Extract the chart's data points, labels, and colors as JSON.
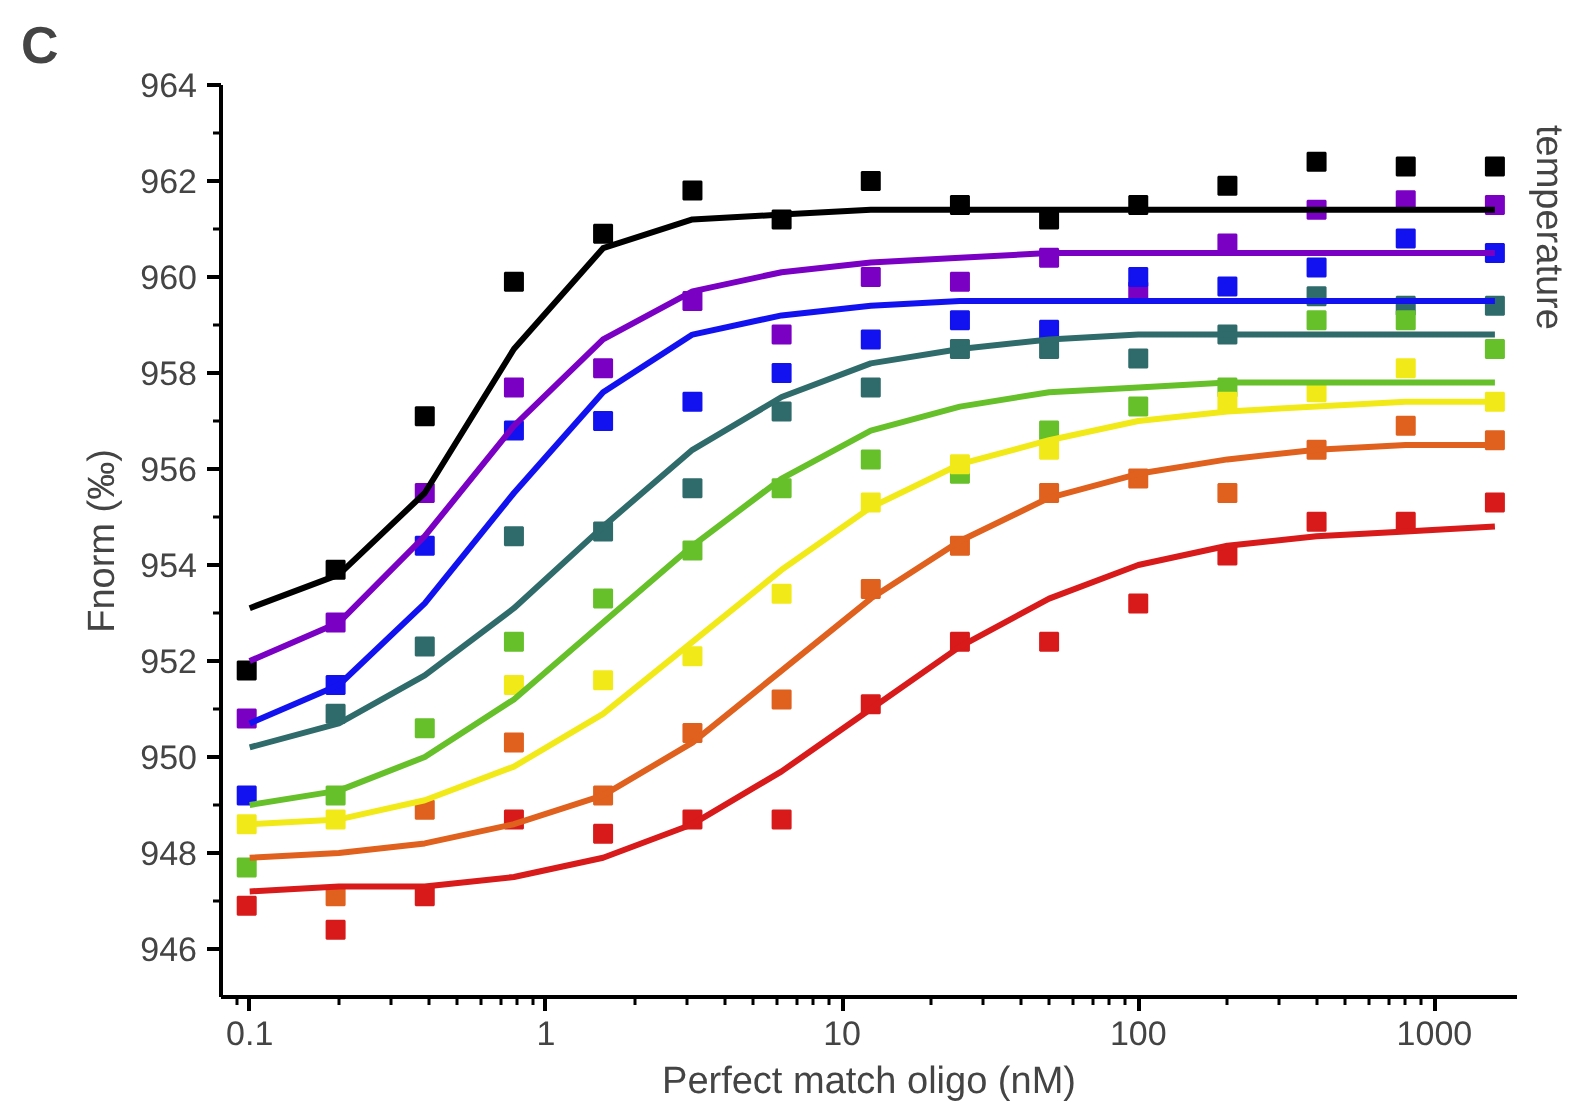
{
  "chart_data": {
    "type": "scatter",
    "title": "C",
    "xlabel": "Perfect match oligo (nM)",
    "ylabel": "Fnorm (‰)",
    "annotations": [
      "temperature"
    ],
    "log": "x",
    "grid": false,
    "marker": "square",
    "xlim": [
      0.08,
      1900
    ],
    "ylim": [
      945,
      964
    ],
    "xticks": [
      {
        "value": 0.09,
        "label": null
      },
      0.1,
      {
        "value": 0.2,
        "label": null
      },
      {
        "value": 0.3,
        "label": null
      },
      {
        "value": 0.4,
        "label": null
      },
      {
        "value": 0.5,
        "label": null
      },
      {
        "value": 0.6,
        "label": null
      },
      {
        "value": 0.7,
        "label": null
      },
      {
        "value": 0.8,
        "label": null
      },
      {
        "value": 0.9,
        "label": null
      },
      1,
      {
        "value": 2,
        "label": null
      },
      {
        "value": 3,
        "label": null
      },
      {
        "value": 4,
        "label": null
      },
      {
        "value": 5,
        "label": null
      },
      {
        "value": 6,
        "label": null
      },
      {
        "value": 7,
        "label": null
      },
      {
        "value": 8,
        "label": null
      },
      {
        "value": 9,
        "label": null
      },
      10,
      {
        "value": 20,
        "label": null
      },
      {
        "value": 30,
        "label": null
      },
      {
        "value": 40,
        "label": null
      },
      {
        "value": 50,
        "label": null
      },
      {
        "value": 60,
        "label": null
      },
      {
        "value": 70,
        "label": null
      },
      {
        "value": 80,
        "label": null
      },
      {
        "value": 90,
        "label": null
      },
      100,
      {
        "value": 200,
        "label": null
      },
      {
        "value": 300,
        "label": null
      },
      {
        "value": 400,
        "label": null
      },
      {
        "value": 500,
        "label": null
      },
      {
        "value": 600,
        "label": null
      },
      {
        "value": 700,
        "label": null
      },
      {
        "value": 800,
        "label": null
      },
      {
        "value": 900,
        "label": null
      },
      1000
    ],
    "yticks": [
      946,
      {
        "value": 947,
        "label": null
      },
      948,
      {
        "value": 949,
        "label": null
      },
      950,
      {
        "value": 951,
        "label": null
      },
      952,
      {
        "value": 953,
        "label": null
      },
      954,
      {
        "value": 955,
        "label": null
      },
      956,
      {
        "value": 957,
        "label": null
      },
      958,
      {
        "value": 959,
        "label": null
      },
      960,
      {
        "value": 961,
        "label": null
      },
      962,
      {
        "value": 963,
        "label": null
      },
      964
    ],
    "x": [
      0.0977,
      0.195,
      0.39,
      0.78,
      1.56,
      3.125,
      6.25,
      12.5,
      25,
      50,
      100,
      200,
      400,
      800,
      1600
    ],
    "series": [
      {
        "color": "#000000",
        "values": [
          951.8,
          953.9,
          957.1,
          959.9,
          960.9,
          961.8,
          961.2,
          962.0,
          961.5,
          961.2,
          961.5,
          961.9,
          962.4,
          962.3,
          962.3
        ]
      },
      {
        "color": "#7a00c4",
        "values": [
          950.8,
          952.8,
          955.5,
          957.7,
          958.1,
          959.5,
          958.8,
          960.0,
          959.9,
          960.4,
          959.7,
          960.7,
          961.4,
          961.6,
          961.5
        ]
      },
      {
        "color": "#1212f0",
        "values": [
          949.2,
          951.5,
          954.4,
          956.8,
          957.0,
          957.4,
          958.0,
          958.7,
          959.1,
          958.9,
          960.0,
          959.8,
          960.2,
          960.8,
          960.5
        ]
      },
      {
        "color": "#2f6b6b",
        "values": [
          null,
          950.9,
          952.3,
          954.6,
          954.7,
          955.6,
          957.2,
          957.7,
          958.5,
          958.5,
          958.3,
          958.8,
          959.6,
          959.4,
          959.4
        ]
      },
      {
        "color": "#66c02a",
        "values": [
          947.7,
          949.2,
          950.6,
          952.4,
          953.3,
          954.3,
          955.6,
          956.2,
          955.9,
          956.8,
          957.3,
          957.7,
          959.1,
          959.1,
          958.5
        ]
      },
      {
        "color": "#f2ea18",
        "values": [
          948.6,
          948.7,
          null,
          951.5,
          951.6,
          952.1,
          953.4,
          955.3,
          956.1,
          956.4,
          null,
          957.4,
          957.6,
          958.1,
          957.4
        ]
      },
      {
        "color": "#e0601e",
        "values": [
          null,
          947.1,
          948.9,
          950.3,
          949.2,
          950.5,
          951.2,
          953.5,
          954.4,
          955.5,
          955.8,
          955.5,
          956.4,
          956.9,
          956.6
        ]
      },
      {
        "color": "#d81a1a",
        "values": [
          946.9,
          946.4,
          947.1,
          948.7,
          948.4,
          948.7,
          948.7,
          951.1,
          952.4,
          952.4,
          953.2,
          954.2,
          954.9,
          954.9,
          955.3
        ]
      },
      {
        "type": "line",
        "marker": "none",
        "color": "#000000",
        "x": [
          0.1,
          0.2,
          0.39,
          0.78,
          1.56,
          3.125,
          6.25,
          12.5,
          25,
          50,
          100,
          200,
          400,
          800,
          1600
        ],
        "values": [
          953.1,
          953.8,
          955.5,
          958.5,
          960.6,
          961.2,
          961.3,
          961.4,
          961.4,
          961.4,
          961.4,
          961.4,
          961.4,
          961.4,
          961.4
        ]
      },
      {
        "type": "line",
        "marker": "none",
        "color": "#7a00c4",
        "x": [
          0.1,
          0.2,
          0.39,
          0.78,
          1.56,
          3.125,
          6.25,
          12.5,
          25,
          50,
          100,
          200,
          400,
          800,
          1600
        ],
        "values": [
          952.0,
          952.8,
          954.6,
          956.9,
          958.7,
          959.7,
          960.1,
          960.3,
          960.4,
          960.5,
          960.5,
          960.5,
          960.5,
          960.5,
          960.5
        ]
      },
      {
        "type": "line",
        "marker": "none",
        "color": "#1212f0",
        "x": [
          0.1,
          0.2,
          0.39,
          0.78,
          1.56,
          3.125,
          6.25,
          12.5,
          25,
          50,
          100,
          200,
          400,
          800,
          1600
        ],
        "values": [
          950.7,
          951.5,
          953.2,
          955.5,
          957.6,
          958.8,
          959.2,
          959.4,
          959.5,
          959.5,
          959.5,
          959.5,
          959.5,
          959.5,
          959.5
        ]
      },
      {
        "type": "line",
        "marker": "none",
        "color": "#2f6b6b",
        "x": [
          0.1,
          0.2,
          0.39,
          0.78,
          1.56,
          3.125,
          6.25,
          12.5,
          25,
          50,
          100,
          200,
          400,
          800,
          1600
        ],
        "values": [
          950.2,
          950.7,
          951.7,
          953.1,
          954.8,
          956.4,
          957.5,
          958.2,
          958.5,
          958.7,
          958.8,
          958.8,
          958.8,
          958.8,
          958.8
        ]
      },
      {
        "type": "line",
        "marker": "none",
        "color": "#66c02a",
        "x": [
          0.1,
          0.2,
          0.39,
          0.78,
          1.56,
          3.125,
          6.25,
          12.5,
          25,
          50,
          100,
          200,
          400,
          800,
          1600
        ],
        "values": [
          949.0,
          949.3,
          950.0,
          951.2,
          952.8,
          954.4,
          955.8,
          956.8,
          957.3,
          957.6,
          957.7,
          957.8,
          957.8,
          957.8,
          957.8
        ]
      },
      {
        "type": "line",
        "marker": "none",
        "color": "#f2ea18",
        "x": [
          0.1,
          0.2,
          0.39,
          0.78,
          1.56,
          3.125,
          6.25,
          12.5,
          25,
          50,
          100,
          200,
          400,
          800,
          1600
        ],
        "values": [
          948.6,
          948.7,
          949.1,
          949.8,
          950.9,
          952.4,
          953.9,
          955.2,
          956.1,
          956.6,
          957.0,
          957.2,
          957.3,
          957.4,
          957.4
        ]
      },
      {
        "type": "line",
        "marker": "none",
        "color": "#e0601e",
        "x": [
          0.1,
          0.2,
          0.39,
          0.78,
          1.56,
          3.125,
          6.25,
          12.5,
          25,
          50,
          100,
          200,
          400,
          800,
          1600
        ],
        "values": [
          947.9,
          948.0,
          948.2,
          948.6,
          949.2,
          950.3,
          951.8,
          953.3,
          954.5,
          955.4,
          955.9,
          956.2,
          956.4,
          956.5,
          956.5
        ]
      },
      {
        "type": "line",
        "marker": "none",
        "color": "#d81a1a",
        "x": [
          0.1,
          0.2,
          0.39,
          0.78,
          1.56,
          3.125,
          6.25,
          12.5,
          25,
          50,
          100,
          200,
          400,
          800,
          1600
        ],
        "values": [
          947.2,
          947.3,
          947.3,
          947.5,
          947.9,
          948.6,
          949.7,
          951.0,
          952.3,
          953.3,
          954.0,
          954.4,
          954.6,
          954.7,
          954.8
        ]
      }
    ]
  }
}
